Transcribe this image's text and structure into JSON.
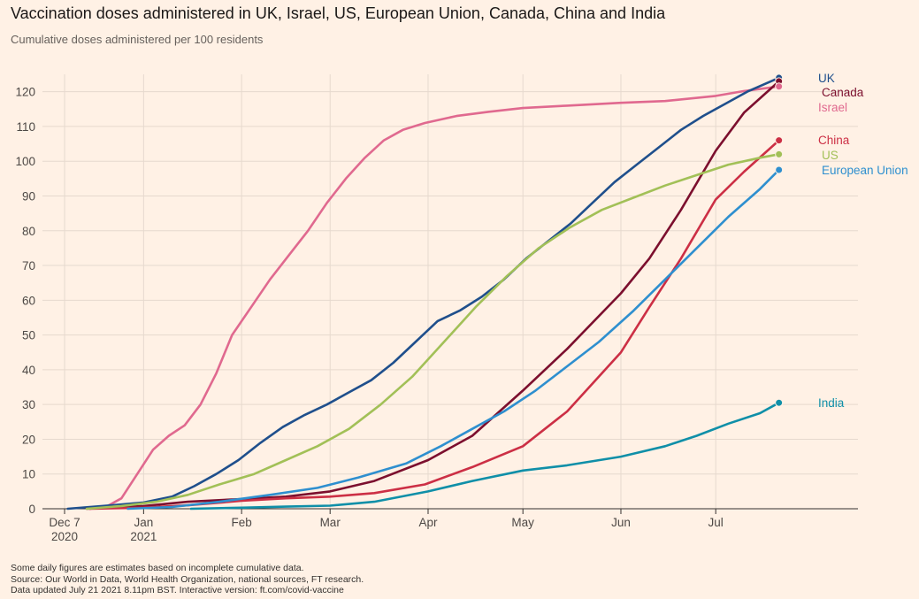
{
  "header": {
    "title": "Vaccination doses administered in UK, Israel, US, European Union, Canada, China and India",
    "subtitle": "Cumulative doses administered per 100 residents"
  },
  "footer": {
    "note": "Some daily figures are estimates based on incomplete cumulative data.",
    "source": "Source: Our World in Data, World Health Organization, national sources, FT research.",
    "updated": "Data updated July 21 2021 8.11pm BST. Interactive version: ft.com/covid-vaccine"
  },
  "colors": {
    "background": "#fff1e5",
    "grid": "#e6d9ce",
    "axis": "#33302e"
  },
  "chart_data": {
    "type": "line",
    "title": "Vaccination doses administered in UK, Israel, US, European Union, Canada, China and India",
    "subtitle": "Cumulative doses administered per 100 residents",
    "xlabel": "",
    "ylabel": "",
    "x_type": "date",
    "xlim": [
      "2020-11-30",
      "2021-08-15"
    ],
    "ylim": [
      0,
      125
    ],
    "y_ticks": [
      0,
      10,
      20,
      30,
      40,
      50,
      60,
      70,
      80,
      90,
      100,
      110,
      120
    ],
    "x_ticks": [
      {
        "date": "2020-12-07",
        "label": "Dec 7",
        "sublabel": "2020"
      },
      {
        "date": "2021-01-01",
        "label": "Jan",
        "sublabel": "2021"
      },
      {
        "date": "2021-02-01",
        "label": "Feb",
        "sublabel": ""
      },
      {
        "date": "2021-03-01",
        "label": "Mar",
        "sublabel": ""
      },
      {
        "date": "2021-04-01",
        "label": "Apr",
        "sublabel": ""
      },
      {
        "date": "2021-05-01",
        "label": "May",
        "sublabel": ""
      },
      {
        "date": "2021-06-01",
        "label": "Jun",
        "sublabel": ""
      },
      {
        "date": "2021-07-01",
        "label": "Jul",
        "sublabel": ""
      }
    ],
    "grid": true,
    "legend": "direct labels at line ends",
    "series": [
      {
        "name": "Israel",
        "color": "#e0698f",
        "points": [
          [
            "2020-12-15",
            0
          ],
          [
            "2020-12-20",
            0.5
          ],
          [
            "2020-12-25",
            3
          ],
          [
            "2020-12-30",
            10
          ],
          [
            "2021-01-04",
            17
          ],
          [
            "2021-01-09",
            21
          ],
          [
            "2021-01-14",
            24
          ],
          [
            "2021-01-19",
            30
          ],
          [
            "2021-01-24",
            39
          ],
          [
            "2021-01-29",
            50
          ],
          [
            "2021-02-04",
            58
          ],
          [
            "2021-02-10",
            66
          ],
          [
            "2021-02-16",
            73
          ],
          [
            "2021-02-22",
            80
          ],
          [
            "2021-02-28",
            88
          ],
          [
            "2021-03-06",
            95
          ],
          [
            "2021-03-12",
            101
          ],
          [
            "2021-03-18",
            106
          ],
          [
            "2021-03-24",
            109
          ],
          [
            "2021-03-31",
            111
          ],
          [
            "2021-04-10",
            113
          ],
          [
            "2021-04-20",
            114.2
          ],
          [
            "2021-05-01",
            115.3
          ],
          [
            "2021-05-15",
            116
          ],
          [
            "2021-06-01",
            116.8
          ],
          [
            "2021-06-15",
            117.3
          ],
          [
            "2021-07-01",
            118.8
          ],
          [
            "2021-07-10",
            120.2
          ],
          [
            "2021-07-21",
            121.5
          ]
        ]
      },
      {
        "name": "UK",
        "color": "#1f4f8c",
        "points": [
          [
            "2020-12-08",
            0
          ],
          [
            "2020-12-15",
            0.5
          ],
          [
            "2020-12-22",
            1
          ],
          [
            "2021-01-01",
            1.8
          ],
          [
            "2021-01-10",
            3.5
          ],
          [
            "2021-01-17",
            6.5
          ],
          [
            "2021-01-24",
            10
          ],
          [
            "2021-01-31",
            14
          ],
          [
            "2021-02-07",
            19
          ],
          [
            "2021-02-14",
            23.5
          ],
          [
            "2021-02-21",
            27
          ],
          [
            "2021-02-28",
            30
          ],
          [
            "2021-03-07",
            33.5
          ],
          [
            "2021-03-14",
            37
          ],
          [
            "2021-03-21",
            42
          ],
          [
            "2021-03-28",
            48
          ],
          [
            "2021-04-04",
            54
          ],
          [
            "2021-04-11",
            57
          ],
          [
            "2021-04-18",
            61
          ],
          [
            "2021-04-25",
            66
          ],
          [
            "2021-05-02",
            72
          ],
          [
            "2021-05-09",
            77
          ],
          [
            "2021-05-16",
            82
          ],
          [
            "2021-05-23",
            88
          ],
          [
            "2021-05-30",
            94
          ],
          [
            "2021-06-06",
            99
          ],
          [
            "2021-06-13",
            104
          ],
          [
            "2021-06-20",
            109
          ],
          [
            "2021-06-27",
            113
          ],
          [
            "2021-07-04",
            116.5
          ],
          [
            "2021-07-11",
            120
          ],
          [
            "2021-07-21",
            124
          ]
        ]
      },
      {
        "name": "Canada",
        "color": "#7c0f2e",
        "points": [
          [
            "2020-12-14",
            0
          ],
          [
            "2021-01-01",
            0.8
          ],
          [
            "2021-01-15",
            2
          ],
          [
            "2021-02-01",
            2.8
          ],
          [
            "2021-02-15",
            3.5
          ],
          [
            "2021-03-01",
            5
          ],
          [
            "2021-03-15",
            8
          ],
          [
            "2021-04-01",
            14
          ],
          [
            "2021-04-15",
            21
          ],
          [
            "2021-05-01",
            34
          ],
          [
            "2021-05-15",
            46
          ],
          [
            "2021-06-01",
            62
          ],
          [
            "2021-06-10",
            72
          ],
          [
            "2021-06-20",
            86
          ],
          [
            "2021-07-01",
            103
          ],
          [
            "2021-07-10",
            114
          ],
          [
            "2021-07-21",
            123
          ]
        ]
      },
      {
        "name": "China",
        "color": "#cc2f45",
        "points": [
          [
            "2020-12-15",
            0
          ],
          [
            "2021-01-01",
            0.3
          ],
          [
            "2021-01-15",
            1
          ],
          [
            "2021-02-01",
            2.3
          ],
          [
            "2021-02-15",
            3
          ],
          [
            "2021-03-01",
            3.5
          ],
          [
            "2021-03-15",
            4.5
          ],
          [
            "2021-03-31",
            7
          ],
          [
            "2021-04-15",
            12
          ],
          [
            "2021-05-01",
            18
          ],
          [
            "2021-05-15",
            28
          ],
          [
            "2021-06-01",
            45
          ],
          [
            "2021-06-10",
            58
          ],
          [
            "2021-06-20",
            72
          ],
          [
            "2021-07-01",
            89
          ],
          [
            "2021-07-10",
            97
          ],
          [
            "2021-07-21",
            106
          ]
        ]
      },
      {
        "name": "US",
        "color": "#a2c057",
        "points": [
          [
            "2020-12-14",
            0
          ],
          [
            "2020-12-25",
            0.8
          ],
          [
            "2021-01-05",
            2
          ],
          [
            "2021-01-15",
            4
          ],
          [
            "2021-01-25",
            7
          ],
          [
            "2021-02-05",
            10
          ],
          [
            "2021-02-15",
            14
          ],
          [
            "2021-02-25",
            18
          ],
          [
            "2021-03-07",
            23
          ],
          [
            "2021-03-17",
            30
          ],
          [
            "2021-03-27",
            38
          ],
          [
            "2021-04-06",
            48
          ],
          [
            "2021-04-16",
            58
          ],
          [
            "2021-04-26",
            67
          ],
          [
            "2021-05-06",
            75
          ],
          [
            "2021-05-16",
            81
          ],
          [
            "2021-05-26",
            86
          ],
          [
            "2021-06-05",
            89.5
          ],
          [
            "2021-06-15",
            93
          ],
          [
            "2021-06-25",
            96
          ],
          [
            "2021-07-05",
            99
          ],
          [
            "2021-07-15",
            101
          ],
          [
            "2021-07-21",
            102
          ]
        ]
      },
      {
        "name": "European Union",
        "color": "#2e8fcf",
        "points": [
          [
            "2020-12-27",
            0
          ],
          [
            "2021-01-10",
            0.5
          ],
          [
            "2021-01-25",
            2
          ],
          [
            "2021-02-10",
            4
          ],
          [
            "2021-02-25",
            6
          ],
          [
            "2021-03-10",
            9
          ],
          [
            "2021-03-25",
            13
          ],
          [
            "2021-04-05",
            18
          ],
          [
            "2021-04-15",
            23
          ],
          [
            "2021-04-25",
            28
          ],
          [
            "2021-05-05",
            34
          ],
          [
            "2021-05-15",
            41
          ],
          [
            "2021-05-25",
            48
          ],
          [
            "2021-06-05",
            57
          ],
          [
            "2021-06-15",
            66
          ],
          [
            "2021-06-25",
            75
          ],
          [
            "2021-07-05",
            84
          ],
          [
            "2021-07-15",
            92
          ],
          [
            "2021-07-21",
            97.5
          ]
        ]
      },
      {
        "name": "India",
        "color": "#0f8fa8",
        "points": [
          [
            "2021-01-16",
            0
          ],
          [
            "2021-02-01",
            0.3
          ],
          [
            "2021-02-15",
            0.6
          ],
          [
            "2021-03-01",
            0.9
          ],
          [
            "2021-03-15",
            2
          ],
          [
            "2021-04-01",
            5
          ],
          [
            "2021-04-15",
            8
          ],
          [
            "2021-05-01",
            11
          ],
          [
            "2021-05-15",
            12.5
          ],
          [
            "2021-06-01",
            15
          ],
          [
            "2021-06-15",
            18
          ],
          [
            "2021-06-25",
            21
          ],
          [
            "2021-07-05",
            24.5
          ],
          [
            "2021-07-15",
            27.5
          ],
          [
            "2021-07-21",
            30.5
          ]
        ]
      }
    ],
    "end_labels": [
      {
        "series": "UK",
        "text": "UK",
        "value": 124
      },
      {
        "series": "Canada",
        "text": "Canada",
        "value": 123
      },
      {
        "series": "Israel",
        "text": "Israel",
        "value": 121.5
      },
      {
        "series": "China",
        "text": "China",
        "value": 106
      },
      {
        "series": "US",
        "text": "US",
        "value": 102
      },
      {
        "series": "European Union",
        "text": "European Union",
        "value": 97.5
      },
      {
        "series": "India",
        "text": "India",
        "value": 30.5
      }
    ]
  }
}
